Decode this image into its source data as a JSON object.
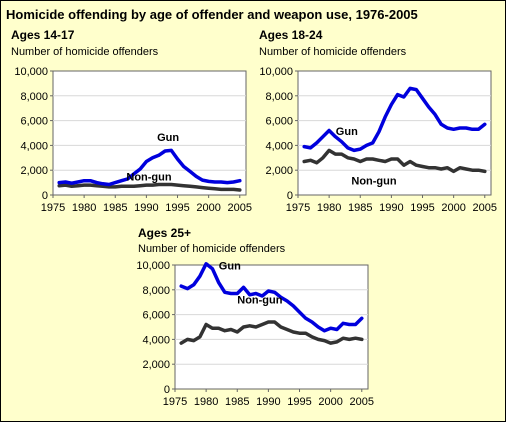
{
  "title": "Homicide offending by age of offender and weapon use, 1976-2005",
  "chart_data": [
    {
      "type": "line",
      "title": "Ages 14-17",
      "ylabel": "Number of homicide offenders",
      "ylim": [
        0,
        10000
      ],
      "yticks": [
        "0",
        "2,000",
        "4,000",
        "6,000",
        "8,000",
        "10,000"
      ],
      "xticks": [
        "1975",
        "1980",
        "1985",
        "1990",
        "1995",
        "2000",
        "2005"
      ],
      "xlim": [
        1975,
        2006
      ],
      "x": [
        1976,
        1977,
        1978,
        1979,
        1980,
        1981,
        1982,
        1983,
        1984,
        1985,
        1986,
        1987,
        1988,
        1989,
        1990,
        1991,
        1992,
        1993,
        1994,
        1995,
        1996,
        1997,
        1998,
        1999,
        2000,
        2001,
        2002,
        2003,
        2004,
        2005
      ],
      "series": [
        {
          "name": "Gun",
          "color": "#0000dd",
          "values": [
            1000,
            1050,
            950,
            1050,
            1150,
            1150,
            1000,
            900,
            850,
            1000,
            1150,
            1300,
            1700,
            2100,
            2700,
            3000,
            3200,
            3550,
            3600,
            2900,
            2300,
            1900,
            1500,
            1200,
            1100,
            1050,
            1050,
            1000,
            1050,
            1150
          ]
        },
        {
          "name": "Non-gun",
          "color": "#333333",
          "values": [
            750,
            800,
            700,
            750,
            800,
            800,
            750,
            700,
            650,
            650,
            700,
            700,
            700,
            750,
            800,
            800,
            850,
            850,
            850,
            800,
            750,
            700,
            650,
            600,
            550,
            500,
            450,
            450,
            450,
            400
          ]
        }
      ]
    },
    {
      "type": "line",
      "title": "Ages 18-24",
      "ylabel": "Number of homicide offenders",
      "ylim": [
        0,
        10000
      ],
      "yticks": [
        "0",
        "2,000",
        "4,000",
        "6,000",
        "8,000",
        "10,000"
      ],
      "xticks": [
        "1975",
        "1980",
        "1985",
        "1990",
        "1995",
        "2000",
        "2005"
      ],
      "xlim": [
        1975,
        2006
      ],
      "x": [
        1976,
        1977,
        1978,
        1979,
        1980,
        1981,
        1982,
        1983,
        1984,
        1985,
        1986,
        1987,
        1988,
        1989,
        1990,
        1991,
        1992,
        1993,
        1994,
        1995,
        1996,
        1997,
        1998,
        1999,
        2000,
        2001,
        2002,
        2003,
        2004,
        2005
      ],
      "series": [
        {
          "name": "Gun",
          "color": "#0000dd",
          "values": [
            3900,
            3800,
            4200,
            4700,
            5200,
            4700,
            4300,
            3800,
            3600,
            3700,
            4000,
            4200,
            5100,
            6300,
            7300,
            8100,
            7900,
            8600,
            8500,
            7800,
            7100,
            6500,
            5700,
            5400,
            5300,
            5400,
            5400,
            5300,
            5300,
            5700
          ]
        },
        {
          "name": "Non-gun",
          "color": "#333333",
          "values": [
            2700,
            2800,
            2600,
            3000,
            3600,
            3300,
            3300,
            3000,
            2900,
            2700,
            2900,
            2900,
            2800,
            2700,
            2900,
            2900,
            2400,
            2700,
            2400,
            2300,
            2200,
            2200,
            2100,
            2200,
            1900,
            2200,
            2100,
            2000,
            2000,
            1900
          ]
        }
      ]
    },
    {
      "type": "line",
      "title": "Ages 25+",
      "ylabel": "Number of homicide offenders",
      "ylim": [
        0,
        10000
      ],
      "yticks": [
        "0",
        "2,000",
        "4,000",
        "6,000",
        "8,000",
        "10,000"
      ],
      "xticks": [
        "1975",
        "1980",
        "1985",
        "1990",
        "1995",
        "2000",
        "2005"
      ],
      "xlim": [
        1975,
        2006
      ],
      "x": [
        1976,
        1977,
        1978,
        1979,
        1980,
        1981,
        1982,
        1983,
        1984,
        1985,
        1986,
        1987,
        1988,
        1989,
        1990,
        1991,
        1992,
        1993,
        1994,
        1995,
        1996,
        1997,
        1998,
        1999,
        2000,
        2001,
        2002,
        2003,
        2004,
        2005
      ],
      "series": [
        {
          "name": "Gun",
          "color": "#0000dd",
          "values": [
            8300,
            8100,
            8400,
            9100,
            10100,
            9700,
            8600,
            7800,
            7700,
            7700,
            8200,
            7600,
            7700,
            7500,
            7900,
            7800,
            7400,
            7100,
            6700,
            6200,
            5700,
            5400,
            5000,
            4700,
            4900,
            4800,
            5300,
            5200,
            5200,
            5700
          ]
        },
        {
          "name": "Non-gun",
          "color": "#333333",
          "values": [
            3700,
            4000,
            3900,
            4200,
            5200,
            4900,
            4900,
            4700,
            4800,
            4600,
            5000,
            5100,
            5000,
            5200,
            5400,
            5400,
            5000,
            4800,
            4600,
            4500,
            4500,
            4200,
            4000,
            3900,
            3700,
            3800,
            4100,
            4000,
            4100,
            4000
          ]
        }
      ]
    }
  ]
}
